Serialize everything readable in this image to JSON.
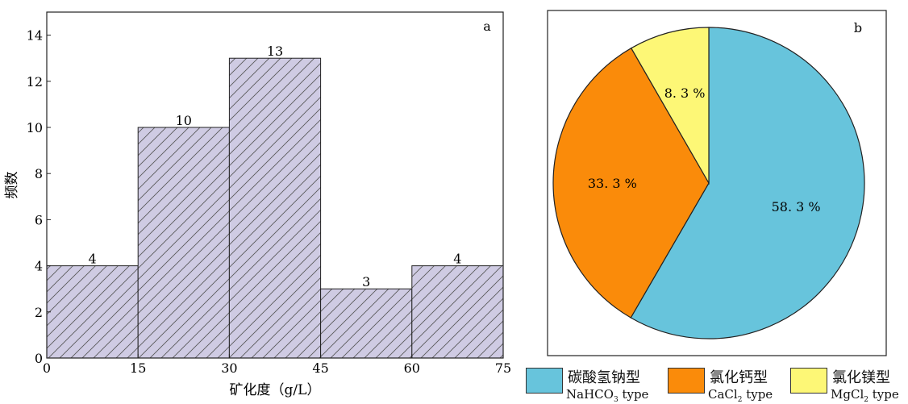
{
  "chart_data": [
    {
      "panel_label": "a",
      "type": "bar",
      "subtype": "histogram",
      "bins": [
        [
          0,
          15
        ],
        [
          15,
          30
        ],
        [
          30,
          45
        ],
        [
          45,
          60
        ],
        [
          60,
          75
        ]
      ],
      "values": [
        4,
        10,
        13,
        3,
        4
      ],
      "value_labels": [
        "4",
        "10",
        "13",
        "3",
        "4"
      ],
      "xlabel": "矿化度（g/L）",
      "ylabel": "频数",
      "xlim": [
        0,
        75
      ],
      "ylim": [
        0,
        15
      ],
      "xticks": [
        0,
        15,
        30,
        45,
        60,
        75
      ],
      "xtick_labels": [
        "0",
        "15",
        "30",
        "45",
        "60",
        "75"
      ],
      "yticks": [
        0,
        2,
        4,
        6,
        8,
        10,
        12,
        14
      ],
      "ytick_labels": [
        "0",
        "2",
        "4",
        "6",
        "8",
        "10",
        "12",
        "14"
      ],
      "bar_fill": "#cfcbe3",
      "hatch": "diagonal",
      "grid": false
    },
    {
      "panel_label": "b",
      "type": "pie",
      "labels": [
        "碳酸氢钠型",
        "氯化钙型",
        "氯化镁型"
      ],
      "labels_en": [
        "NaHCO3 type",
        "CaCl2 type",
        "MgCl2 type"
      ],
      "values": [
        58.3,
        33.3,
        8.3
      ],
      "value_labels": [
        "58. 3 %",
        "33. 3 %",
        "8. 3 %"
      ],
      "colors": [
        "#67c4dc",
        "#fa8b0a",
        "#fdf776"
      ],
      "legend_position": "bottom"
    }
  ]
}
